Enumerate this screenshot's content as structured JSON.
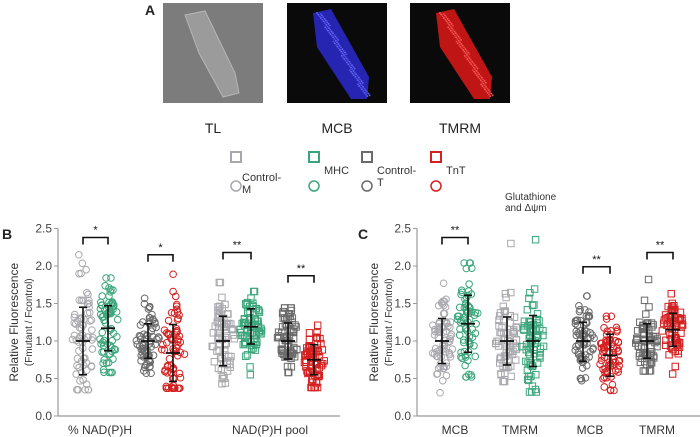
{
  "panel_a": {
    "label": "A",
    "images": [
      {
        "label": "TL",
        "background": "#7c7c7c",
        "cell_color": "#b0b0b0"
      },
      {
        "label": "MCB",
        "background": "#0a0a0a",
        "cell_color": "#2a2ad0"
      },
      {
        "label": "TMRM",
        "background": "#0a0a0a",
        "cell_color": "#e01818"
      }
    ]
  },
  "legend": {
    "items": [
      {
        "label": "Control-M",
        "color": "#a8a8ae"
      },
      {
        "label": "MHC",
        "color": "#3aa57a"
      },
      {
        "label": "Control-T",
        "color": "#6a6a6a"
      },
      {
        "label": "TnT",
        "color": "#d42020"
      }
    ],
    "subtitle": "Glutathione and Δψm"
  },
  "chart_data": [
    {
      "panel": "B",
      "type": "scatter",
      "ylabel": "Relative Fluorescence",
      "ylabel2": "(Fmutant / Fcontrol)",
      "ylim": [
        0,
        2.5
      ],
      "yticks": [
        "0.0",
        "0.5",
        "1.0",
        "1.5",
        "2.0",
        "2.5"
      ],
      "categories": [
        "% NAD(P)H",
        "NAD(P)H pool"
      ],
      "groups": [
        {
          "category": "% NAD(P)H",
          "series": "Control-M",
          "marker": "circle",
          "mean": 1.0,
          "sd_low": 0.55,
          "sd_high": 1.45,
          "min": 0.35,
          "max": 2.15
        },
        {
          "category": "% NAD(P)H",
          "series": "MHC",
          "marker": "circle",
          "mean": 1.17,
          "sd_low": 0.87,
          "sd_high": 1.47,
          "min": 0.58,
          "max": 1.84
        },
        {
          "category": "% NAD(P)H",
          "series": "Control-T",
          "marker": "circle",
          "mean": 1.0,
          "sd_low": 0.77,
          "sd_high": 1.23,
          "min": 0.57,
          "max": 1.57
        },
        {
          "category": "% NAD(P)H",
          "series": "TnT",
          "marker": "circle",
          "mean": 0.84,
          "sd_low": 0.46,
          "sd_high": 1.22,
          "min": 0.37,
          "max": 1.89
        },
        {
          "category": "NAD(P)H pool",
          "series": "Control-M",
          "marker": "square",
          "mean": 1.0,
          "sd_low": 0.67,
          "sd_high": 1.33,
          "min": 0.43,
          "max": 1.78
        },
        {
          "category": "NAD(P)H pool",
          "series": "MHC",
          "marker": "square",
          "mean": 1.19,
          "sd_low": 0.96,
          "sd_high": 1.43,
          "min": 0.55,
          "max": 1.66
        },
        {
          "category": "NAD(P)H pool",
          "series": "Control-T",
          "marker": "square",
          "mean": 1.0,
          "sd_low": 0.76,
          "sd_high": 1.24,
          "min": 0.58,
          "max": 1.44
        },
        {
          "category": "NAD(P)H pool",
          "series": "TnT",
          "marker": "square",
          "mean": 0.75,
          "sd_low": 0.55,
          "sd_high": 0.95,
          "min": 0.38,
          "max": 1.21
        }
      ],
      "significance": [
        {
          "pair": [
            0,
            1
          ],
          "label": "*",
          "y": 2.38
        },
        {
          "pair": [
            2,
            3
          ],
          "label": "*",
          "y": 2.15
        },
        {
          "pair": [
            4,
            5
          ],
          "label": "**",
          "y": 2.18
        },
        {
          "pair": [
            6,
            7
          ],
          "label": "**",
          "y": 1.87
        }
      ]
    },
    {
      "panel": "C",
      "type": "scatter",
      "ylabel": "Relative Fluorescence",
      "ylabel2": "(Fmutant / Fcontrol)",
      "ylim": [
        0,
        2.5
      ],
      "yticks": [
        "0.0",
        "0.5",
        "1.0",
        "1.5",
        "2.0",
        "2.5"
      ],
      "categories": [
        "MCB",
        "TMRM",
        "MCB",
        "TMRM"
      ],
      "groups": [
        {
          "category": "MCB",
          "series": "Control-M",
          "marker": "circle",
          "mean": 1.0,
          "sd_low": 0.7,
          "sd_high": 1.3,
          "min": 0.31,
          "max": 1.77
        },
        {
          "category": "MCB",
          "series": "MHC",
          "marker": "circle",
          "mean": 1.23,
          "sd_low": 0.85,
          "sd_high": 1.61,
          "min": 0.52,
          "max": 2.04
        },
        {
          "category": "TMRM",
          "series": "Control-M",
          "marker": "square",
          "mean": 1.0,
          "sd_low": 0.68,
          "sd_high": 1.32,
          "min": 0.46,
          "max": 2.3
        },
        {
          "category": "TMRM",
          "series": "MHC",
          "marker": "square",
          "mean": 1.0,
          "sd_low": 0.66,
          "sd_high": 1.34,
          "min": 0.32,
          "max": 2.35
        },
        {
          "category": "MCB",
          "series": "Control-T",
          "marker": "circle",
          "mean": 1.0,
          "sd_low": 0.73,
          "sd_high": 1.25,
          "min": 0.47,
          "max": 1.6
        },
        {
          "category": "MCB",
          "series": "TnT",
          "marker": "circle",
          "mean": 0.81,
          "sd_low": 0.53,
          "sd_high": 1.09,
          "min": 0.34,
          "max": 1.33
        },
        {
          "category": "TMRM",
          "series": "Control-T",
          "marker": "square",
          "mean": 1.0,
          "sd_low": 0.77,
          "sd_high": 1.23,
          "min": 0.6,
          "max": 1.82
        },
        {
          "category": "TMRM",
          "series": "TnT",
          "marker": "square",
          "mean": 1.15,
          "sd_low": 0.93,
          "sd_high": 1.37,
          "min": 0.56,
          "max": 1.63
        }
      ],
      "significance": [
        {
          "pair": [
            0,
            1
          ],
          "label": "**",
          "y": 2.38
        },
        {
          "pair": [
            4,
            5
          ],
          "label": "**",
          "y": 1.99
        },
        {
          "pair": [
            6,
            7
          ],
          "label": "**",
          "y": 2.18
        }
      ]
    }
  ]
}
